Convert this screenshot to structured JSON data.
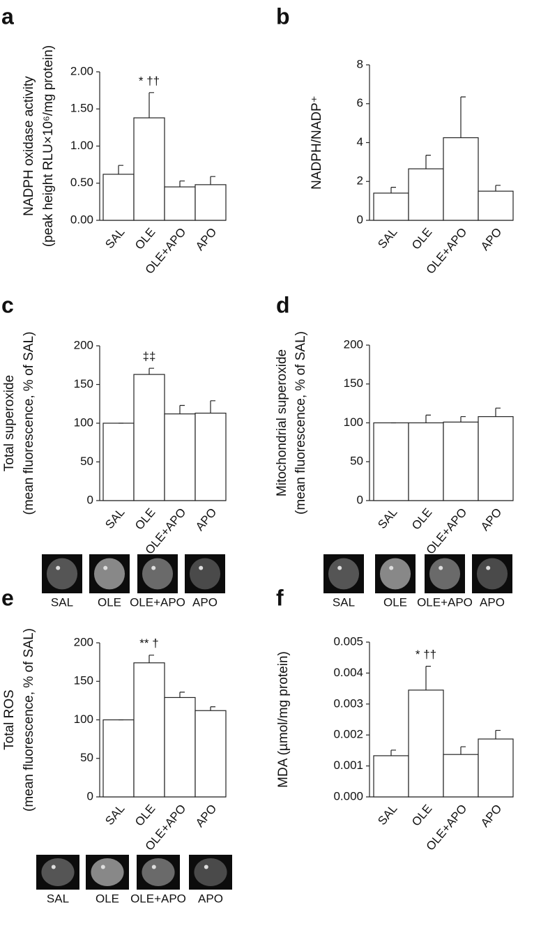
{
  "chart_data": [
    {
      "type": "bar",
      "panel": "a",
      "ylabel": [
        "NADPH oxidase activity",
        "(peak height RLU×10⁶/mg protein)"
      ],
      "categories": [
        "SAL",
        "OLE",
        "OLE+APO",
        "APO"
      ],
      "values": [
        0.62,
        1.38,
        0.45,
        0.48
      ],
      "errors": [
        0.12,
        0.34,
        0.08,
        0.11
      ],
      "annotations": [
        null,
        "* ††",
        null,
        null
      ],
      "ylim": [
        0,
        2
      ],
      "yticks": [
        {
          "value": 0,
          "label": "0.00"
        },
        {
          "value": 0.5,
          "label": "0.50"
        },
        {
          "value": 1,
          "label": "1.00"
        },
        {
          "value": 1.5,
          "label": "1.50"
        },
        {
          "value": 2,
          "label": "2.00"
        }
      ]
    },
    {
      "type": "bar",
      "panel": "b",
      "ylabel": [
        "NADPH/NADP⁺"
      ],
      "categories": [
        "SAL",
        "OLE",
        "OLE+APO",
        "APO"
      ],
      "values": [
        1.4,
        2.65,
        4.25,
        1.5
      ],
      "errors": [
        0.3,
        0.7,
        2.1,
        0.3
      ],
      "ylim": [
        0,
        8
      ],
      "yticks": [
        0,
        2,
        4,
        6,
        8
      ]
    },
    {
      "type": "bar",
      "panel": "c",
      "ylabel": [
        "Total superoxide",
        "(mean fluorescence, % of SAL)"
      ],
      "categories": [
        "SAL",
        "OLE",
        "OLE+APO",
        "APO"
      ],
      "values": [
        100,
        163,
        112,
        113
      ],
      "errors": [
        0,
        8,
        11,
        16
      ],
      "annotations": [
        null,
        "‡‡",
        null,
        null
      ],
      "ylim": [
        0,
        200
      ],
      "yticks": [
        0,
        50,
        100,
        150,
        200
      ],
      "image_labels": [
        "SAL",
        "OLE",
        "OLE+APO",
        "APO"
      ]
    },
    {
      "type": "bar",
      "panel": "d",
      "ylabel": [
        "Mitochondrial superoxide",
        "(mean fluorescence, % of SAL)"
      ],
      "categories": [
        "SAL",
        "OLE",
        "OLE+APO",
        "APO"
      ],
      "values": [
        100,
        100,
        101,
        108
      ],
      "errors": [
        0,
        10,
        7,
        11
      ],
      "ylim": [
        0,
        200
      ],
      "yticks": [
        0,
        50,
        100,
        150,
        200
      ],
      "image_labels": [
        "SAL",
        "OLE",
        "OLE+APO",
        "APO"
      ]
    },
    {
      "type": "bar",
      "panel": "e",
      "ylabel": [
        "Total ROS",
        "(mean fluorescence, % of SAL)"
      ],
      "categories": [
        "SAL",
        "OLE",
        "OLE+APO",
        "APO"
      ],
      "values": [
        100,
        174,
        129,
        112
      ],
      "errors": [
        0,
        10,
        7,
        5
      ],
      "annotations": [
        null,
        "** †",
        null,
        null
      ],
      "ylim": [
        0,
        200
      ],
      "yticks": [
        0,
        50,
        100,
        150,
        200
      ],
      "image_labels": [
        "SAL",
        "OLE",
        "OLE+APO",
        "APO"
      ]
    },
    {
      "type": "bar",
      "panel": "f",
      "ylabel": [
        "MDA (µmol/mg protein)"
      ],
      "categories": [
        "SAL",
        "OLE",
        "OLE+APO",
        "APO"
      ],
      "values": [
        0.00133,
        0.00345,
        0.00137,
        0.00187
      ],
      "errors": [
        0.00018,
        0.00077,
        0.00025,
        0.00028
      ],
      "annotations": [
        null,
        "* ††",
        null,
        null
      ],
      "ylim": [
        0,
        0.005
      ],
      "yticks": [
        {
          "value": 0,
          "label": "0.000"
        },
        {
          "value": 0.001,
          "label": "0.001"
        },
        {
          "value": 0.002,
          "label": "0.002"
        },
        {
          "value": 0.003,
          "label": "0.003"
        },
        {
          "value": 0.004,
          "label": "0.004"
        },
        {
          "value": 0.005,
          "label": "0.005"
        }
      ]
    }
  ]
}
